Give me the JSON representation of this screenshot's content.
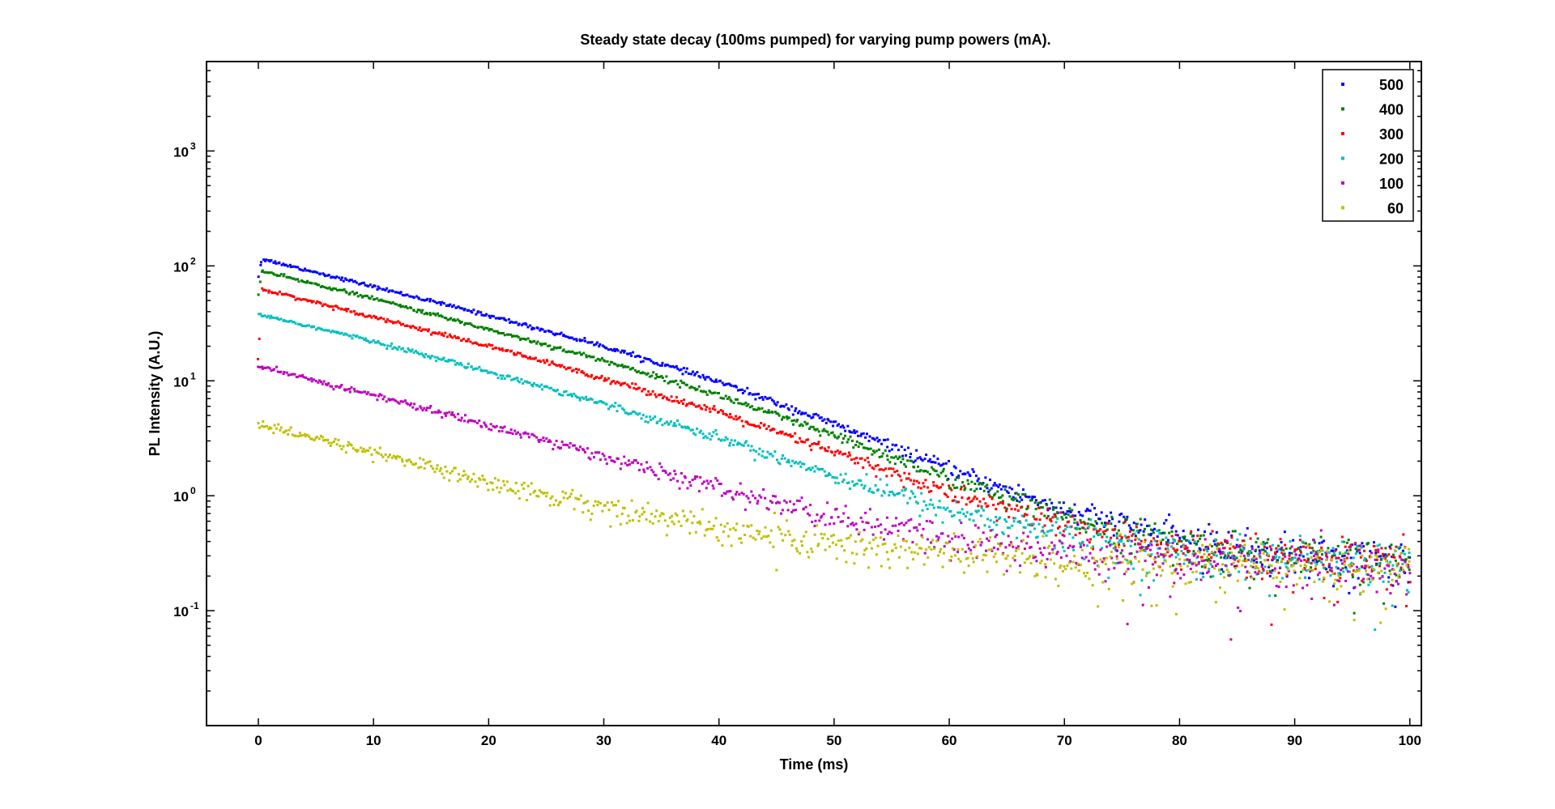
{
  "chart_data": {
    "type": "scatter",
    "title": "Steady state decay (100ms pumped) for varying pump powers (mA).",
    "xlabel": "Time (ms)",
    "ylabel": "PL Intensity (A.U.)",
    "xlim": [
      -4.5,
      101
    ],
    "ylim": [
      0.01,
      6000
    ],
    "yscale": "log",
    "x_ticks": [
      0,
      10,
      20,
      30,
      40,
      50,
      60,
      70,
      80,
      90,
      100
    ],
    "x_tick_labels": [
      "0",
      "10",
      "20",
      "30",
      "40",
      "50",
      "60",
      "70",
      "80",
      "90",
      "100"
    ],
    "y_ticks": [
      0.1,
      1,
      10,
      100,
      1000
    ],
    "y_tick_labels": [
      {
        "base": "10",
        "exp": "-1"
      },
      {
        "base": "10",
        "exp": "0"
      },
      {
        "base": "10",
        "exp": "1"
      },
      {
        "base": "10",
        "exp": "2"
      },
      {
        "base": "10",
        "exp": "3"
      }
    ],
    "grid": false,
    "legend_position": "top-right",
    "series": [
      {
        "name": "500",
        "color": "#0000ff",
        "x": [
          0,
          0.3,
          10,
          20,
          30,
          40,
          50,
          60,
          70,
          80,
          90,
          100
        ],
        "y": [
          80,
          115,
          66,
          37,
          20,
          9.8,
          4.2,
          1.7,
          0.75,
          0.42,
          0.3,
          0.27
        ]
      },
      {
        "name": "400",
        "color": "#008000",
        "x": [
          0,
          0.3,
          10,
          20,
          30,
          40,
          50,
          60,
          70,
          80,
          90,
          100
        ],
        "y": [
          55,
          90,
          52,
          28,
          15,
          7.5,
          3.3,
          1.4,
          0.65,
          0.38,
          0.29,
          0.26
        ]
      },
      {
        "name": "300",
        "color": "#ff0000",
        "x": [
          0,
          0.3,
          10,
          20,
          30,
          40,
          50,
          60,
          70,
          80,
          90,
          100
        ],
        "y": [
          15,
          63,
          36,
          20,
          10.5,
          5.3,
          2.4,
          1.05,
          0.55,
          0.34,
          0.27,
          0.25
        ]
      },
      {
        "name": "200",
        "color": "#00bfbf",
        "x": [
          0,
          10,
          20,
          30,
          40,
          50,
          60,
          70,
          80,
          90,
          100
        ],
        "y": [
          38,
          22,
          12,
          6.3,
          3.2,
          1.5,
          0.75,
          0.45,
          0.32,
          0.27,
          0.25
        ]
      },
      {
        "name": "100",
        "color": "#bf00bf",
        "x": [
          0,
          10,
          20,
          30,
          40,
          50,
          60,
          70,
          80,
          90,
          100
        ],
        "y": [
          13.2,
          7.5,
          4.1,
          2.2,
          1.15,
          0.65,
          0.42,
          0.32,
          0.27,
          0.25,
          0.24
        ]
      },
      {
        "name": "60",
        "color": "#bfbf00",
        "x": [
          0,
          10,
          20,
          30,
          40,
          50,
          60,
          70,
          80,
          90,
          100
        ],
        "y": [
          4.1,
          2.4,
          1.3,
          0.8,
          0.52,
          0.38,
          0.31,
          0.27,
          0.25,
          0.24,
          0.23
        ]
      }
    ]
  }
}
